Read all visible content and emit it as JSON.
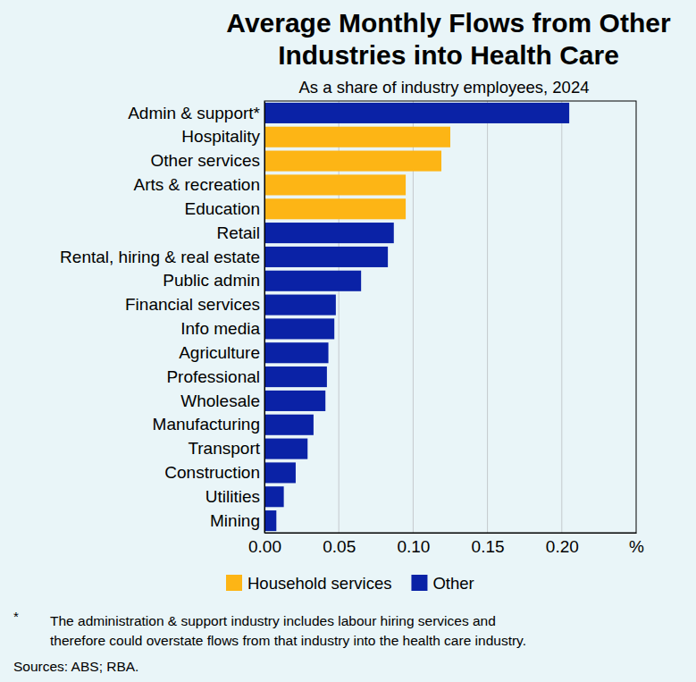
{
  "chart_data": {
    "type": "bar",
    "orientation": "horizontal",
    "title": [
      "Average Monthly Flows from Other",
      "Industries into Health Care"
    ],
    "subtitle": "As a share of industry employees, 2024",
    "categories": [
      "Admin & support*",
      "Hospitality",
      "Other services",
      "Arts & recreation",
      "Education",
      "Retail",
      "Rental, hiring & real estate",
      "Public admin",
      "Financial services",
      "Info media",
      "Agriculture",
      "Professional",
      "Wholesale",
      "Manufacturing",
      "Transport",
      "Construction",
      "Utilities",
      "Mining"
    ],
    "series": [
      {
        "name": "Household services",
        "color": "#fdb515",
        "values": [
          null,
          0.125,
          0.119,
          0.095,
          0.095,
          null,
          null,
          null,
          null,
          null,
          null,
          null,
          null,
          null,
          null,
          null,
          null,
          null
        ]
      },
      {
        "name": "Other",
        "color": "#0a22a6",
        "values": [
          0.205,
          null,
          null,
          null,
          null,
          0.087,
          0.083,
          0.065,
          0.048,
          0.047,
          0.043,
          0.042,
          0.041,
          0.033,
          0.029,
          0.021,
          0.013,
          0.008
        ]
      }
    ],
    "xlim": [
      0,
      0.25
    ],
    "xticks": [
      {
        "value": 0,
        "label": "0.00"
      },
      {
        "value": 0.05,
        "label": "0.05"
      },
      {
        "value": 0.1,
        "label": "0.10"
      },
      {
        "value": 0.15,
        "label": "0.15"
      },
      {
        "value": 0.2,
        "label": "0.20"
      },
      {
        "value": 0.25,
        "label": "%"
      }
    ],
    "grid": true,
    "legend": "bottom",
    "footnote_marker": "*",
    "footnote_lines": [
      "The administration & support industry includes labour hiring services and",
      "therefore could overstate flows from that industry into the health care industry."
    ],
    "source": "Sources: ABS; RBA."
  }
}
